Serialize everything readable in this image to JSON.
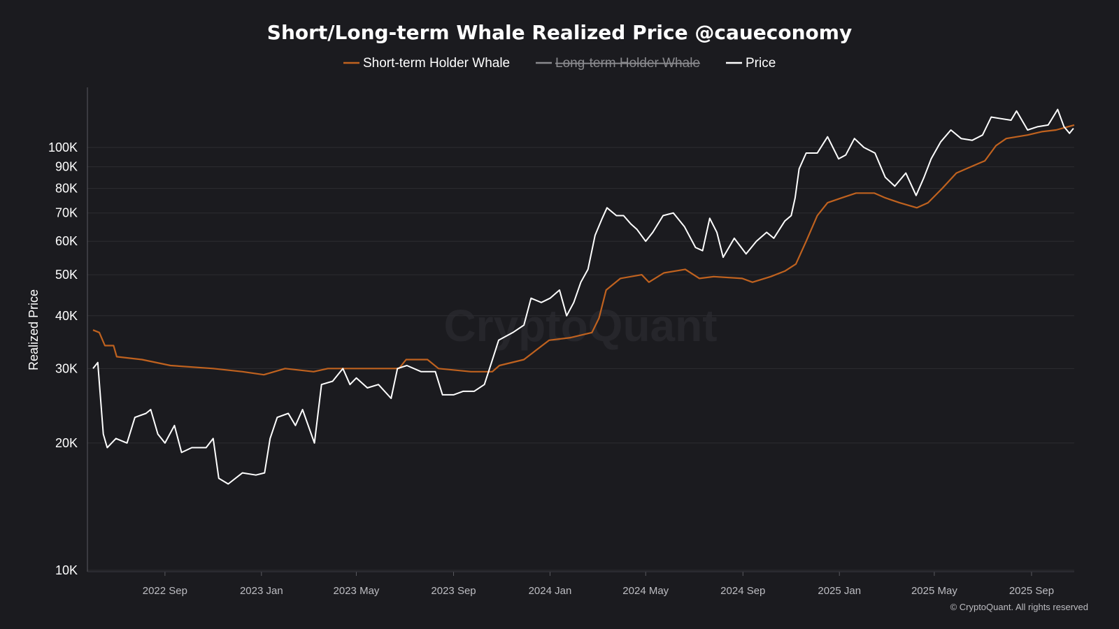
{
  "chart_data": {
    "type": "line",
    "title": "Short/Long-term Whale Realized Price @caueconomy",
    "ylabel": "Realized Price",
    "xlabel": "",
    "y_scale": "log",
    "ylim": [
      10000,
      140000
    ],
    "xlim": [
      "2022-06-02",
      "2025-10-25"
    ],
    "grid": true,
    "legend_position": "top",
    "y_ticks": [
      {
        "value": 10000,
        "label": "10K"
      },
      {
        "value": 20000,
        "label": "20K"
      },
      {
        "value": 30000,
        "label": "30K"
      },
      {
        "value": 40000,
        "label": "40K"
      },
      {
        "value": 50000,
        "label": "50K"
      },
      {
        "value": 60000,
        "label": "60K"
      },
      {
        "value": 70000,
        "label": "70K"
      },
      {
        "value": 80000,
        "label": "80K"
      },
      {
        "value": 90000,
        "label": "90K"
      },
      {
        "value": 100000,
        "label": "100K"
      }
    ],
    "x_ticks": [
      {
        "date": "2022-09-01",
        "label": "2022 Sep"
      },
      {
        "date": "2023-01-01",
        "label": "2023 Jan"
      },
      {
        "date": "2023-05-01",
        "label": "2023 May"
      },
      {
        "date": "2023-09-01",
        "label": "2023 Sep"
      },
      {
        "date": "2024-01-01",
        "label": "2024 Jan"
      },
      {
        "date": "2024-05-01",
        "label": "2024 May"
      },
      {
        "date": "2024-09-01",
        "label": "2024 Sep"
      },
      {
        "date": "2025-01-01",
        "label": "2025 Jan"
      },
      {
        "date": "2025-05-01",
        "label": "2025 May"
      },
      {
        "date": "2025-09-01",
        "label": "2025 Sep"
      }
    ],
    "series": [
      {
        "name": "Short-term Holder Whale",
        "color": "#c0621f",
        "visible": true,
        "points": [
          [
            "2022-06-02",
            37000
          ],
          [
            "2022-06-10",
            36500
          ],
          [
            "2022-06-17",
            34000
          ],
          [
            "2022-06-28",
            34000
          ],
          [
            "2022-07-02",
            32000
          ],
          [
            "2022-08-03",
            31500
          ],
          [
            "2022-09-08",
            30500
          ],
          [
            "2022-11-01",
            30000
          ],
          [
            "2022-12-08",
            29500
          ],
          [
            "2023-01-04",
            29000
          ],
          [
            "2023-01-31",
            30000
          ],
          [
            "2023-03-08",
            29500
          ],
          [
            "2023-03-26",
            30000
          ],
          [
            "2023-05-19",
            30000
          ],
          [
            "2023-06-24",
            30000
          ],
          [
            "2023-07-03",
            31500
          ],
          [
            "2023-07-30",
            31500
          ],
          [
            "2023-08-13",
            30000
          ],
          [
            "2023-09-23",
            29500
          ],
          [
            "2023-10-20",
            29500
          ],
          [
            "2023-10-29",
            30500
          ],
          [
            "2023-11-29",
            31500
          ],
          [
            "2023-12-13",
            33000
          ],
          [
            "2023-12-31",
            35000
          ],
          [
            "2024-01-27",
            35500
          ],
          [
            "2024-02-23",
            36500
          ],
          [
            "2024-03-03",
            39500
          ],
          [
            "2024-03-12",
            46000
          ],
          [
            "2024-03-30",
            49000
          ],
          [
            "2024-04-26",
            50000
          ],
          [
            "2024-05-05",
            48000
          ],
          [
            "2024-05-24",
            50500
          ],
          [
            "2024-06-20",
            51500
          ],
          [
            "2024-07-08",
            49000
          ],
          [
            "2024-07-26",
            49500
          ],
          [
            "2024-08-31",
            49000
          ],
          [
            "2024-09-13",
            48000
          ],
          [
            "2024-10-06",
            49500
          ],
          [
            "2024-10-24",
            51000
          ],
          [
            "2024-11-07",
            53000
          ],
          [
            "2024-11-20",
            60000
          ],
          [
            "2024-12-04",
            69000
          ],
          [
            "2024-12-17",
            74000
          ],
          [
            "2025-01-04",
            76000
          ],
          [
            "2025-01-22",
            78000
          ],
          [
            "2025-02-14",
            78000
          ],
          [
            "2025-02-28",
            76000
          ],
          [
            "2025-03-18",
            74000
          ],
          [
            "2025-04-09",
            72000
          ],
          [
            "2025-04-23",
            74000
          ],
          [
            "2025-05-11",
            80000
          ],
          [
            "2025-05-29",
            87000
          ],
          [
            "2025-06-16",
            90000
          ],
          [
            "2025-07-04",
            93000
          ],
          [
            "2025-07-18",
            101000
          ],
          [
            "2025-07-31",
            105000
          ],
          [
            "2025-08-27",
            107000
          ],
          [
            "2025-09-14",
            109000
          ],
          [
            "2025-10-02",
            110000
          ],
          [
            "2025-10-25",
            113000
          ]
        ]
      },
      {
        "name": "Long-term Holder Whale",
        "color": "#8a8a8e",
        "visible": false,
        "points": []
      },
      {
        "name": "Price",
        "color": "#ffffff",
        "visible": true,
        "points": [
          [
            "2022-06-02",
            30000
          ],
          [
            "2022-06-08",
            31000
          ],
          [
            "2022-06-15",
            21000
          ],
          [
            "2022-06-20",
            19500
          ],
          [
            "2022-07-01",
            20500
          ],
          [
            "2022-07-15",
            20000
          ],
          [
            "2022-07-25",
            23000
          ],
          [
            "2022-08-08",
            23500
          ],
          [
            "2022-08-14",
            24000
          ],
          [
            "2022-08-23",
            21000
          ],
          [
            "2022-09-01",
            20000
          ],
          [
            "2022-09-13",
            22000
          ],
          [
            "2022-09-22",
            19000
          ],
          [
            "2022-10-05",
            19500
          ],
          [
            "2022-10-23",
            19500
          ],
          [
            "2022-11-01",
            20500
          ],
          [
            "2022-11-08",
            16500
          ],
          [
            "2022-11-20",
            16000
          ],
          [
            "2022-12-08",
            17000
          ],
          [
            "2022-12-25",
            16800
          ],
          [
            "2023-01-05",
            17000
          ],
          [
            "2023-01-12",
            20500
          ],
          [
            "2023-01-21",
            23000
          ],
          [
            "2023-02-04",
            23500
          ],
          [
            "2023-02-13",
            22000
          ],
          [
            "2023-02-22",
            24000
          ],
          [
            "2023-03-09",
            20000
          ],
          [
            "2023-03-18",
            27500
          ],
          [
            "2023-04-01",
            28000
          ],
          [
            "2023-04-14",
            30000
          ],
          [
            "2023-04-23",
            27500
          ],
          [
            "2023-05-01",
            28500
          ],
          [
            "2023-05-15",
            27000
          ],
          [
            "2023-05-29",
            27500
          ],
          [
            "2023-06-14",
            25500
          ],
          [
            "2023-06-22",
            30000
          ],
          [
            "2023-07-04",
            30500
          ],
          [
            "2023-07-22",
            29500
          ],
          [
            "2023-08-09",
            29500
          ],
          [
            "2023-08-18",
            26000
          ],
          [
            "2023-09-01",
            26000
          ],
          [
            "2023-09-13",
            26500
          ],
          [
            "2023-09-27",
            26500
          ],
          [
            "2023-10-10",
            27500
          ],
          [
            "2023-10-19",
            31000
          ],
          [
            "2023-10-28",
            35000
          ],
          [
            "2023-11-15",
            36500
          ],
          [
            "2023-11-29",
            38000
          ],
          [
            "2023-12-08",
            44000
          ],
          [
            "2023-12-21",
            43000
          ],
          [
            "2024-01-01",
            44000
          ],
          [
            "2024-01-13",
            46000
          ],
          [
            "2024-01-22",
            40000
          ],
          [
            "2024-01-31",
            43000
          ],
          [
            "2024-02-09",
            48000
          ],
          [
            "2024-02-18",
            51500
          ],
          [
            "2024-02-27",
            62000
          ],
          [
            "2024-03-07",
            68000
          ],
          [
            "2024-03-13",
            72000
          ],
          [
            "2024-03-25",
            69000
          ],
          [
            "2024-04-03",
            69000
          ],
          [
            "2024-04-12",
            66000
          ],
          [
            "2024-04-20",
            64000
          ],
          [
            "2024-05-01",
            60000
          ],
          [
            "2024-05-10",
            63000
          ],
          [
            "2024-05-23",
            69000
          ],
          [
            "2024-06-05",
            70000
          ],
          [
            "2024-06-19",
            65000
          ],
          [
            "2024-07-03",
            58000
          ],
          [
            "2024-07-12",
            57000
          ],
          [
            "2024-07-21",
            68000
          ],
          [
            "2024-07-30",
            63000
          ],
          [
            "2024-08-07",
            55000
          ],
          [
            "2024-08-21",
            61000
          ],
          [
            "2024-09-05",
            56000
          ],
          [
            "2024-09-18",
            60000
          ],
          [
            "2024-10-01",
            63000
          ],
          [
            "2024-10-10",
            61000
          ],
          [
            "2024-10-24",
            67000
          ],
          [
            "2024-11-01",
            69000
          ],
          [
            "2024-11-06",
            76000
          ],
          [
            "2024-11-11",
            89000
          ],
          [
            "2024-11-20",
            97000
          ],
          [
            "2024-12-04",
            97000
          ],
          [
            "2024-12-17",
            106000
          ],
          [
            "2024-12-31",
            94000
          ],
          [
            "2025-01-09",
            96000
          ],
          [
            "2025-01-20",
            105000
          ],
          [
            "2025-02-01",
            100000
          ],
          [
            "2025-02-15",
            97000
          ],
          [
            "2025-02-28",
            85000
          ],
          [
            "2025-03-12",
            81000
          ],
          [
            "2025-03-26",
            87000
          ],
          [
            "2025-04-08",
            77000
          ],
          [
            "2025-04-18",
            85000
          ],
          [
            "2025-04-27",
            94000
          ],
          [
            "2025-05-09",
            103000
          ],
          [
            "2025-05-22",
            110000
          ],
          [
            "2025-06-04",
            105000
          ],
          [
            "2025-06-18",
            104000
          ],
          [
            "2025-07-01",
            107000
          ],
          [
            "2025-07-12",
            118000
          ],
          [
            "2025-07-24",
            117000
          ],
          [
            "2025-08-06",
            116000
          ],
          [
            "2025-08-13",
            122000
          ],
          [
            "2025-08-27",
            110000
          ],
          [
            "2025-09-09",
            112000
          ],
          [
            "2025-09-22",
            113000
          ],
          [
            "2025-10-04",
            123000
          ],
          [
            "2025-10-12",
            112000
          ],
          [
            "2025-10-19",
            108000
          ],
          [
            "2025-10-24",
            111000
          ]
        ]
      }
    ],
    "watermark": "CryptoQuant",
    "copyright": "© CryptoQuant. All rights reserved"
  }
}
